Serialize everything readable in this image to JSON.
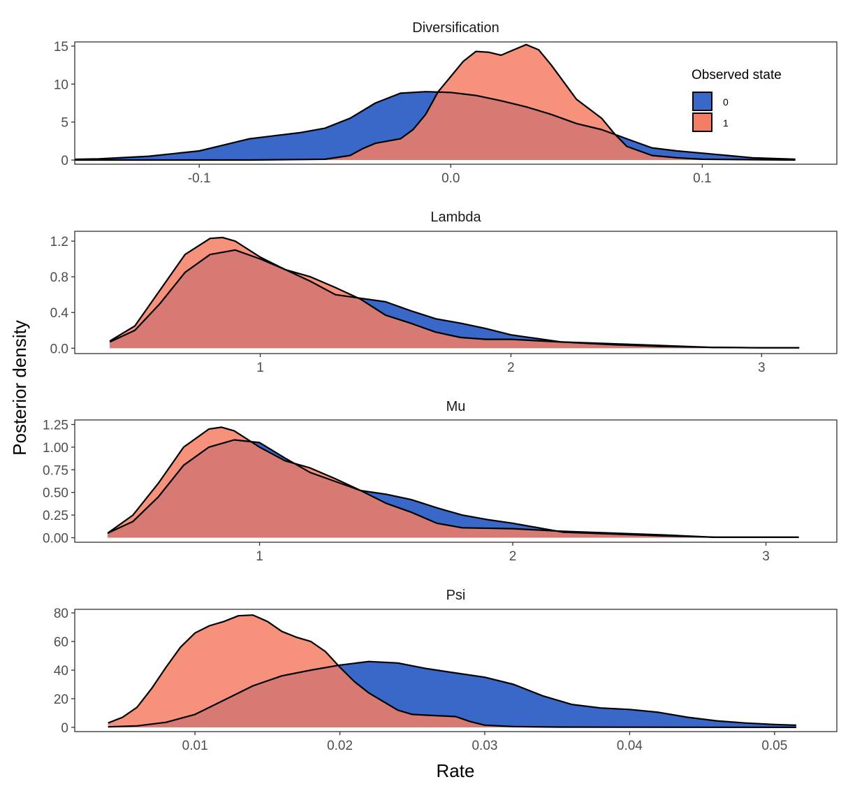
{
  "chart_data": {
    "type": "area",
    "xlabel": "Rate",
    "ylabel": "Posterior density",
    "legend": {
      "title": "Observed state",
      "placement": "top-right",
      "entries": [
        {
          "label": "0",
          "color": "#3A68C9"
        },
        {
          "label": "1",
          "color": "#F47E65"
        }
      ]
    },
    "colors": {
      "state0": "#3A68C9",
      "state1": "#F47E65",
      "overlap": "#D06A5F"
    },
    "grid": false,
    "panels": [
      {
        "title": "Diversification",
        "xlim": [
          -0.1495,
          0.1535
        ],
        "ylim": [
          -0.55,
          15.55
        ],
        "xticks": [
          {
            "v": -0.1,
            "label": "-0.1"
          },
          {
            "v": 0.0,
            "label": "0.0"
          },
          {
            "v": 0.1,
            "label": "0.1"
          }
        ],
        "yticks": [
          {
            "v": 0,
            "label": "0"
          },
          {
            "v": 5,
            "label": "5"
          },
          {
            "v": 10,
            "label": "10"
          },
          {
            "v": 15,
            "label": "15"
          }
        ],
        "series": [
          {
            "name": "0",
            "x": [
              -0.157,
              -0.14,
              -0.12,
              -0.1,
              -0.09,
              -0.08,
              -0.07,
              -0.06,
              -0.05,
              -0.04,
              -0.03,
              -0.02,
              -0.01,
              0.0,
              0.01,
              0.02,
              0.03,
              0.04,
              0.05,
              0.06,
              0.07,
              0.08,
              0.09,
              0.1,
              0.11,
              0.12,
              0.137
            ],
            "y": [
              0.05,
              0.15,
              0.5,
              1.2,
              2.0,
              2.8,
              3.2,
              3.6,
              4.2,
              5.5,
              7.5,
              8.8,
              9.0,
              8.9,
              8.5,
              7.8,
              7.0,
              6.0,
              4.8,
              4.0,
              2.8,
              1.6,
              1.2,
              0.9,
              0.6,
              0.3,
              0.1
            ]
          },
          {
            "name": "1",
            "x": [
              -0.157,
              -0.08,
              -0.05,
              -0.04,
              -0.035,
              -0.03,
              -0.02,
              -0.015,
              -0.01,
              -0.005,
              0.0,
              0.005,
              0.01,
              0.015,
              0.02,
              0.025,
              0.03,
              0.035,
              0.04,
              0.05,
              0.06,
              0.065,
              0.07,
              0.08,
              0.09,
              0.1,
              0.137
            ],
            "y": [
              0.0,
              0.0,
              0.1,
              0.6,
              1.5,
              2.2,
              2.8,
              4.0,
              6.0,
              9.0,
              11.0,
              13.0,
              14.3,
              14.2,
              13.8,
              14.5,
              15.2,
              14.5,
              12.5,
              8.0,
              5.5,
              3.5,
              1.8,
              0.6,
              0.3,
              0.1,
              0.0
            ]
          }
        ]
      },
      {
        "title": "Lambda",
        "xlim": [
          0.26,
          3.3
        ],
        "ylim": [
          -0.06,
          1.31
        ],
        "xticks": [
          {
            "v": 1,
            "label": "1"
          },
          {
            "v": 2,
            "label": "2"
          },
          {
            "v": 3,
            "label": "3"
          }
        ],
        "yticks": [
          {
            "v": 0,
            "label": "0.0"
          },
          {
            "v": 0.4,
            "label": "0.4"
          },
          {
            "v": 0.8,
            "label": "0.8"
          },
          {
            "v": 1.2,
            "label": "1.2"
          }
        ],
        "series": [
          {
            "name": "0",
            "x": [
              0.4,
              0.5,
              0.6,
              0.7,
              0.8,
              0.9,
              1.0,
              1.1,
              1.2,
              1.3,
              1.4,
              1.5,
              1.6,
              1.7,
              1.8,
              1.9,
              2.0,
              2.2,
              2.4,
              2.6,
              2.8,
              3.0,
              3.15
            ],
            "y": [
              0.07,
              0.2,
              0.5,
              0.85,
              1.05,
              1.1,
              1.0,
              0.88,
              0.75,
              0.6,
              0.56,
              0.52,
              0.42,
              0.33,
              0.28,
              0.22,
              0.15,
              0.07,
              0.04,
              0.02,
              0.01,
              0.005,
              0.005
            ]
          },
          {
            "name": "1",
            "x": [
              0.4,
              0.5,
              0.6,
              0.7,
              0.8,
              0.85,
              0.9,
              1.0,
              1.1,
              1.2,
              1.3,
              1.4,
              1.5,
              1.6,
              1.7,
              1.8,
              1.9,
              2.0,
              2.2,
              2.4,
              2.6,
              2.8,
              3.0,
              3.15
            ],
            "y": [
              0.08,
              0.25,
              0.65,
              1.05,
              1.23,
              1.24,
              1.2,
              1.02,
              0.88,
              0.8,
              0.68,
              0.55,
              0.37,
              0.28,
              0.18,
              0.12,
              0.1,
              0.1,
              0.07,
              0.05,
              0.03,
              0.01,
              0.005,
              0.005
            ]
          }
        ]
      },
      {
        "title": "Mu",
        "xlim": [
          0.27,
          3.28
        ],
        "ylim": [
          -0.05,
          1.3
        ],
        "xticks": [
          {
            "v": 1,
            "label": "1"
          },
          {
            "v": 2,
            "label": "2"
          },
          {
            "v": 3,
            "label": "3"
          }
        ],
        "yticks": [
          {
            "v": 0,
            "label": "0.00"
          },
          {
            "v": 0.25,
            "label": "0.25"
          },
          {
            "v": 0.5,
            "label": "0.50"
          },
          {
            "v": 0.75,
            "label": "0.75"
          },
          {
            "v": 1.0,
            "label": "1.00"
          },
          {
            "v": 1.25,
            "label": "1.25"
          }
        ],
        "series": [
          {
            "name": "0",
            "x": [
              0.4,
              0.5,
              0.6,
              0.7,
              0.8,
              0.9,
              1.0,
              1.1,
              1.2,
              1.3,
              1.4,
              1.5,
              1.6,
              1.7,
              1.8,
              1.9,
              2.0,
              2.2,
              2.4,
              2.6,
              2.8,
              3.0,
              3.13
            ],
            "y": [
              0.05,
              0.18,
              0.45,
              0.8,
              1.0,
              1.08,
              1.05,
              0.88,
              0.72,
              0.62,
              0.52,
              0.48,
              0.42,
              0.33,
              0.25,
              0.2,
              0.16,
              0.06,
              0.04,
              0.02,
              0.005,
              0.005,
              0.005
            ]
          },
          {
            "name": "1",
            "x": [
              0.4,
              0.5,
              0.6,
              0.7,
              0.8,
              0.85,
              0.9,
              1.0,
              1.1,
              1.2,
              1.3,
              1.4,
              1.5,
              1.6,
              1.7,
              1.8,
              2.0,
              2.2,
              2.4,
              2.6,
              2.8,
              3.0,
              3.13
            ],
            "y": [
              0.05,
              0.25,
              0.6,
              1.0,
              1.2,
              1.22,
              1.18,
              1.0,
              0.85,
              0.77,
              0.65,
              0.52,
              0.38,
              0.28,
              0.16,
              0.11,
              0.1,
              0.07,
              0.05,
              0.03,
              0.005,
              0.005,
              0.005
            ]
          }
        ]
      },
      {
        "title": "Psi",
        "xlim": [
          0.0017,
          0.0543
        ],
        "ylim": [
          -3.0,
          82.5
        ],
        "xticks": [
          {
            "v": 0.01,
            "label": "0.01"
          },
          {
            "v": 0.02,
            "label": "0.02"
          },
          {
            "v": 0.03,
            "label": "0.03"
          },
          {
            "v": 0.04,
            "label": "0.04"
          },
          {
            "v": 0.05,
            "label": "0.05"
          }
        ],
        "yticks": [
          {
            "v": 0,
            "label": "0"
          },
          {
            "v": 20,
            "label": "20"
          },
          {
            "v": 40,
            "label": "40"
          },
          {
            "v": 60,
            "label": "60"
          },
          {
            "v": 80,
            "label": "80"
          }
        ],
        "series": [
          {
            "name": "0",
            "x": [
              0.004,
              0.006,
              0.008,
              0.01,
              0.012,
              0.014,
              0.016,
              0.018,
              0.02,
              0.022,
              0.024,
              0.026,
              0.028,
              0.03,
              0.032,
              0.034,
              0.036,
              0.038,
              0.04,
              0.042,
              0.044,
              0.046,
              0.048,
              0.05,
              0.0515
            ],
            "y": [
              0.3,
              1.0,
              3.5,
              9.0,
              19.0,
              29.0,
              36.0,
              40.0,
              43.5,
              46.0,
              45.0,
              41.0,
              38.0,
              35.0,
              30.0,
              22.0,
              16.0,
              13.5,
              12.5,
              10.5,
              7.0,
              4.5,
              3.0,
              2.0,
              1.5
            ]
          },
          {
            "name": "1",
            "x": [
              0.004,
              0.005,
              0.006,
              0.007,
              0.008,
              0.009,
              0.01,
              0.011,
              0.012,
              0.013,
              0.014,
              0.015,
              0.016,
              0.017,
              0.018,
              0.019,
              0.02,
              0.021,
              0.022,
              0.023,
              0.024,
              0.025,
              0.026,
              0.027,
              0.028,
              0.029,
              0.03,
              0.032,
              0.035,
              0.04,
              0.0515
            ],
            "y": [
              3.0,
              7.0,
              14.0,
              27.0,
              42.0,
              56.0,
              66.0,
              71.0,
              74.0,
              78.0,
              78.5,
              74.0,
              67.0,
              63.0,
              60.0,
              53.0,
              42.0,
              32.0,
              24.0,
              18.0,
              12.0,
              9.0,
              8.5,
              8.0,
              7.5,
              4.0,
              1.5,
              0.5,
              0.2,
              0.1,
              0.0
            ]
          }
        ]
      }
    ]
  }
}
